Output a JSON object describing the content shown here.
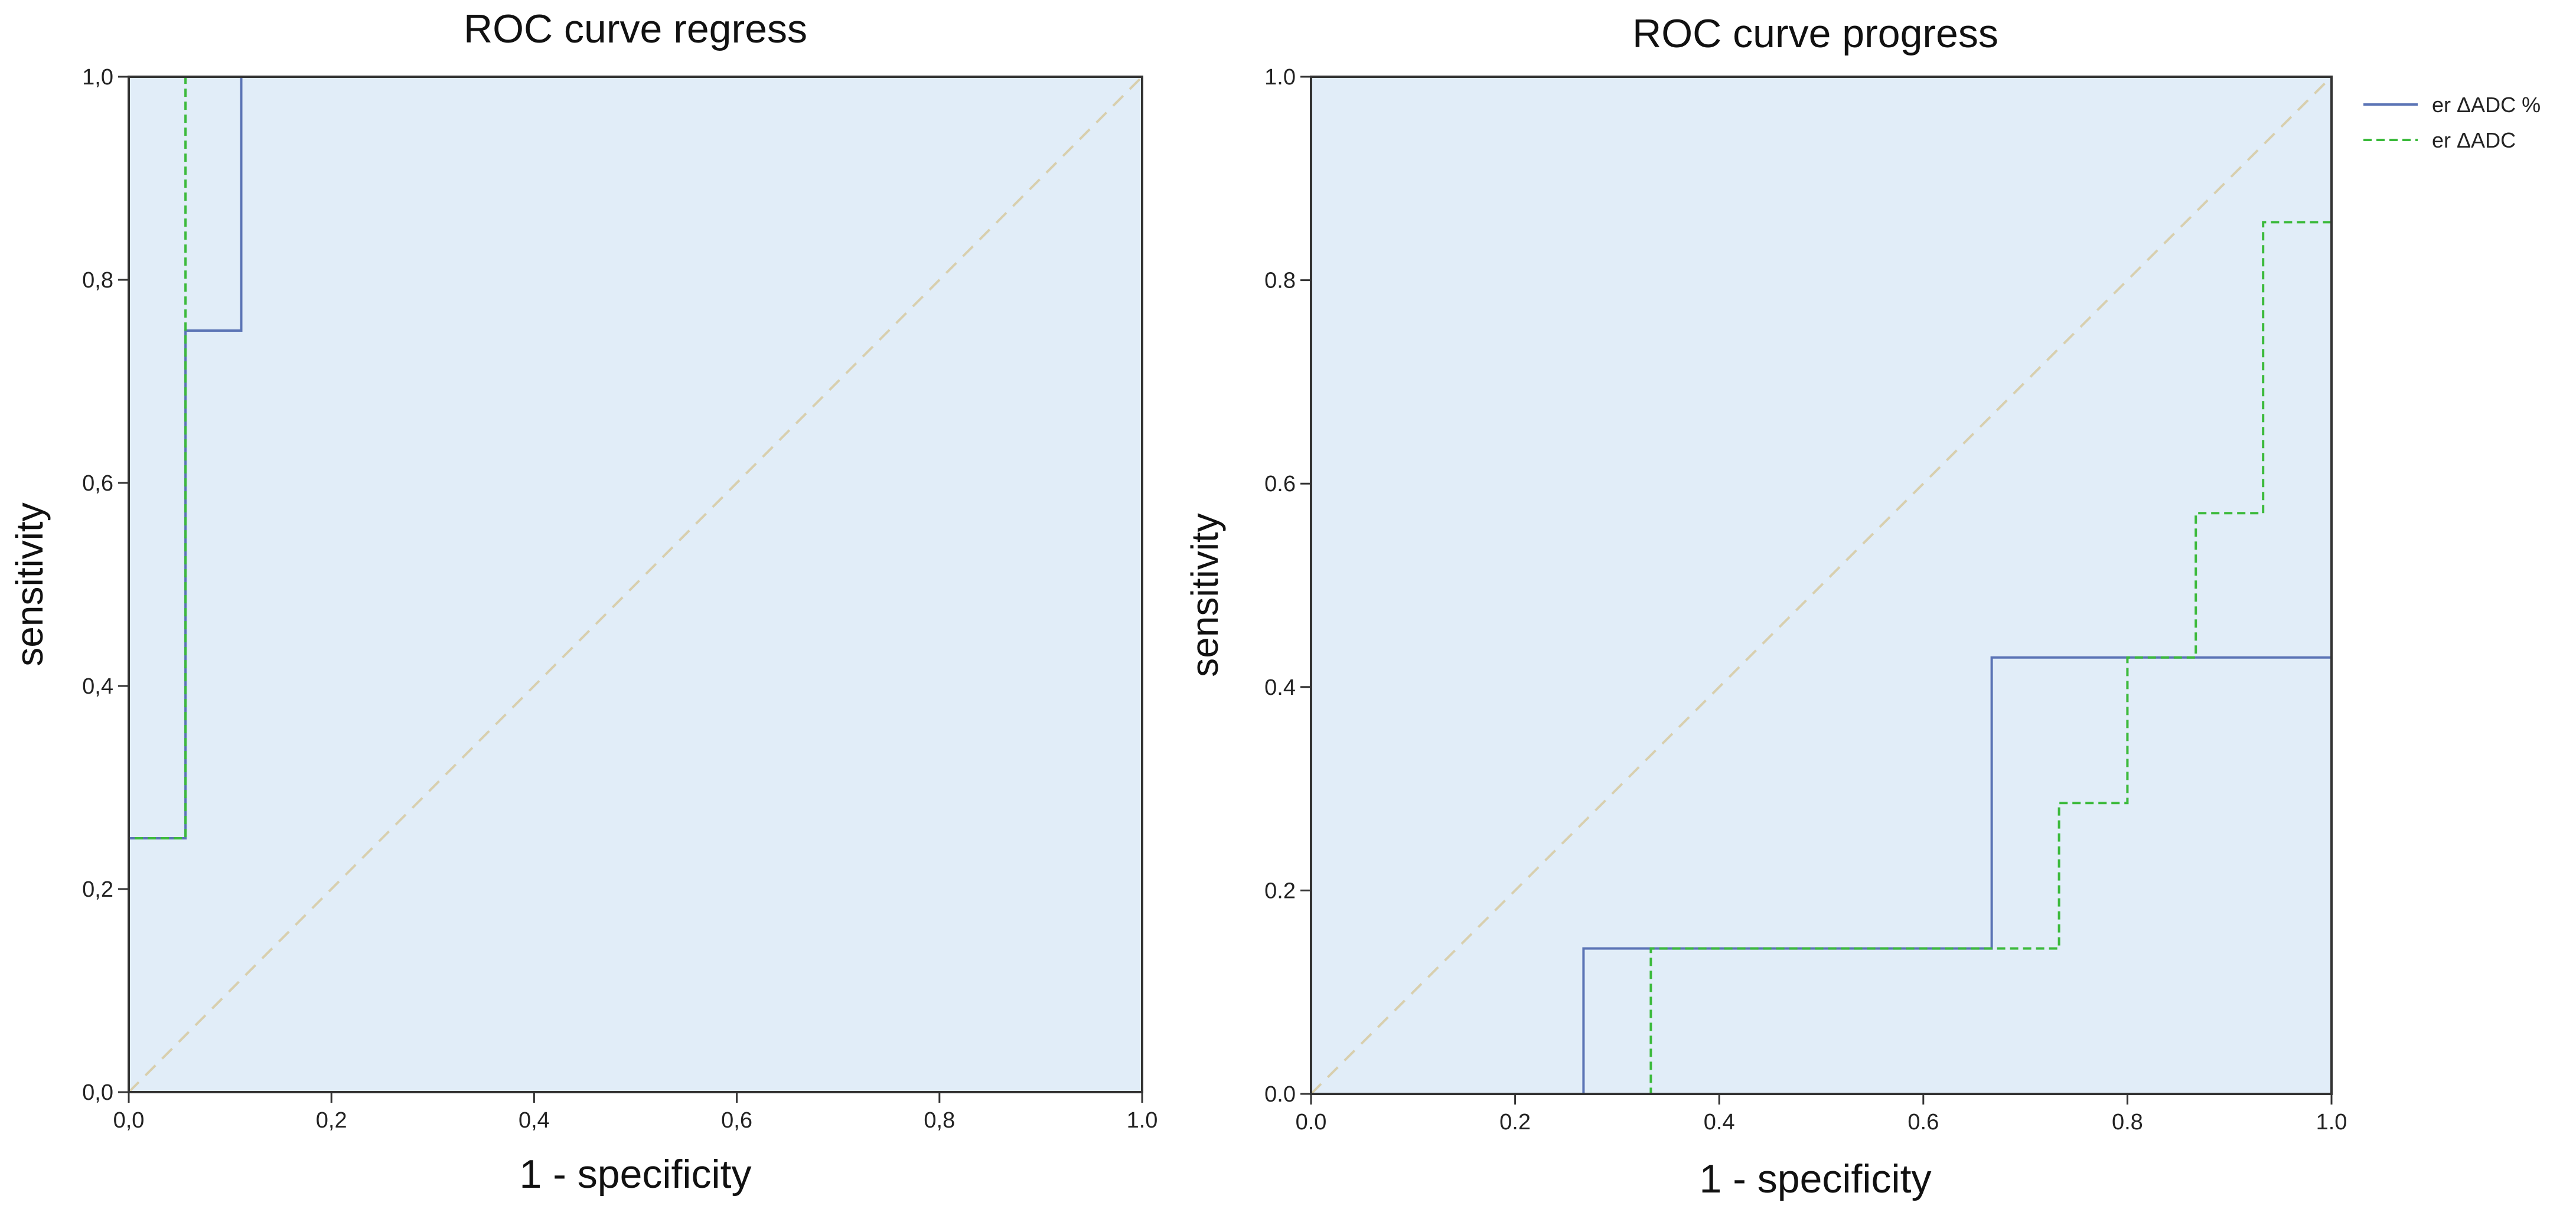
{
  "chart_data": [
    {
      "type": "line",
      "title": "ROC curve regress",
      "xlabel": "1 - specificity",
      "ylabel": "sensitivity",
      "xlim": [
        0,
        1
      ],
      "ylim": [
        0,
        1
      ],
      "x_ticks": [
        0,
        0.2,
        0.4,
        0.6,
        0.8,
        1
      ],
      "y_ticks": [
        0,
        0.2,
        0.4,
        0.6,
        0.8,
        1
      ],
      "x_tick_labels": [
        "0,0",
        "0,2",
        "0,4",
        "0,6",
        "0,8",
        "1.0"
      ],
      "y_tick_labels": [
        "0,0",
        "0,2",
        "0,4",
        "0,6",
        "0,8",
        "1,0"
      ],
      "grid": false,
      "background": "#e1edf8",
      "reference_line": {
        "x": [
          0,
          1
        ],
        "y": [
          0,
          1
        ],
        "color": "#d8cfae",
        "style": "dashed"
      },
      "series": [
        {
          "name": "er ΔADC %",
          "color": "#5b74b5",
          "style": "solid",
          "x": [
            0,
            0,
            0.056,
            0.056,
            0.111,
            0.111,
            1
          ],
          "y": [
            0,
            0.25,
            0.25,
            0.75,
            0.75,
            1,
            1
          ]
        },
        {
          "name": "er ΔADC",
          "color": "#3cba3c",
          "style": "dashed",
          "x": [
            0,
            0,
            0.056,
            0.056,
            0.056,
            1
          ],
          "y": [
            0,
            0.25,
            0.25,
            0.75,
            1,
            1
          ]
        }
      ]
    },
    {
      "type": "line",
      "title": "ROC curve progress",
      "xlabel": "1 - specificity",
      "ylabel": "sensitivity",
      "xlim": [
        0,
        1
      ],
      "ylim": [
        0,
        1
      ],
      "x_ticks": [
        0,
        0.2,
        0.4,
        0.6,
        0.8,
        1
      ],
      "y_ticks": [
        0,
        0.2,
        0.4,
        0.6,
        0.8,
        1
      ],
      "x_tick_labels": [
        "0.0",
        "0.2",
        "0.4",
        "0.6",
        "0.8",
        "1.0"
      ],
      "y_tick_labels": [
        "0.0",
        "0.2",
        "0.4",
        "0.6",
        "0.8",
        "1.0"
      ],
      "grid": false,
      "background": "#e1edf8",
      "reference_line": {
        "x": [
          0,
          1
        ],
        "y": [
          0,
          1
        ],
        "color": "#d8cfae",
        "style": "dashed"
      },
      "legend_position": "right",
      "series": [
        {
          "name": "er ΔADC %",
          "color": "#5b74b5",
          "style": "solid",
          "x": [
            0,
            0.267,
            0.267,
            0.667,
            0.667,
            1
          ],
          "y": [
            0,
            0,
            0.143,
            0.143,
            0.429,
            0.429
          ]
        },
        {
          "name": "er ΔADC",
          "color": "#3cba3c",
          "style": "dashed",
          "x": [
            0,
            0.333,
            0.333,
            0.733,
            0.733,
            0.8,
            0.8,
            0.867,
            0.867,
            0.933,
            0.933,
            1
          ],
          "y": [
            0,
            0,
            0.143,
            0.143,
            0.286,
            0.286,
            0.429,
            0.429,
            0.571,
            0.571,
            0.857,
            0.857
          ]
        }
      ]
    }
  ],
  "legend": {
    "items": [
      {
        "label": "er ΔADC %",
        "color": "#5b74b5",
        "style": "solid"
      },
      {
        "label": "er ΔADC",
        "color": "#3cba3c",
        "style": "dashed"
      }
    ]
  }
}
